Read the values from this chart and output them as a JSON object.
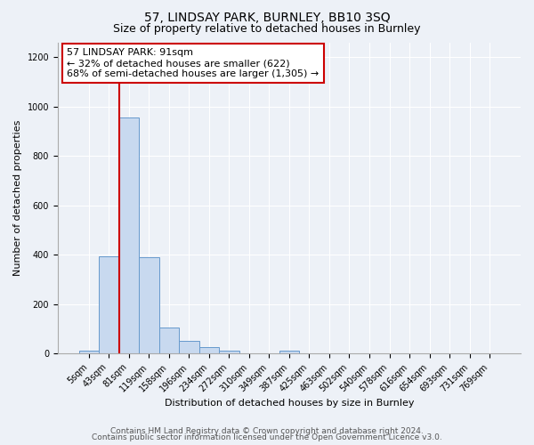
{
  "title": "57, LINDSAY PARK, BURNLEY, BB10 3SQ",
  "subtitle": "Size of property relative to detached houses in Burnley",
  "xlabel": "Distribution of detached houses by size in Burnley",
  "ylabel": "Number of detached properties",
  "bar_labels": [
    "5sqm",
    "43sqm",
    "81sqm",
    "119sqm",
    "158sqm",
    "196sqm",
    "234sqm",
    "272sqm",
    "310sqm",
    "349sqm",
    "387sqm",
    "425sqm",
    "463sqm",
    "502sqm",
    "540sqm",
    "578sqm",
    "616sqm",
    "654sqm",
    "693sqm",
    "731sqm",
    "769sqm"
  ],
  "bar_values": [
    10,
    395,
    955,
    390,
    105,
    50,
    25,
    10,
    0,
    0,
    10,
    0,
    0,
    0,
    0,
    0,
    0,
    0,
    0,
    0,
    0
  ],
  "bar_color": "#c8d9ef",
  "bar_edge_color": "#6699cc",
  "annotation_text": "57 LINDSAY PARK: 91sqm\n← 32% of detached houses are smaller (622)\n68% of semi-detached houses are larger (1,305) →",
  "vline_x_index": 2,
  "vline_color": "#cc0000",
  "annotation_box_edge": "#cc0000",
  "ylim": [
    0,
    1260
  ],
  "yticks": [
    0,
    200,
    400,
    600,
    800,
    1000,
    1200
  ],
  "bg_color": "#edf1f7",
  "plot_bg_color": "#edf1f7",
  "footer_line1": "Contains HM Land Registry data © Crown copyright and database right 2024.",
  "footer_line2": "Contains public sector information licensed under the Open Government Licence v3.0.",
  "title_fontsize": 10,
  "subtitle_fontsize": 9,
  "annotation_fontsize": 8,
  "footer_fontsize": 6.5,
  "ylabel_fontsize": 8,
  "xlabel_fontsize": 8,
  "tick_fontsize": 7
}
